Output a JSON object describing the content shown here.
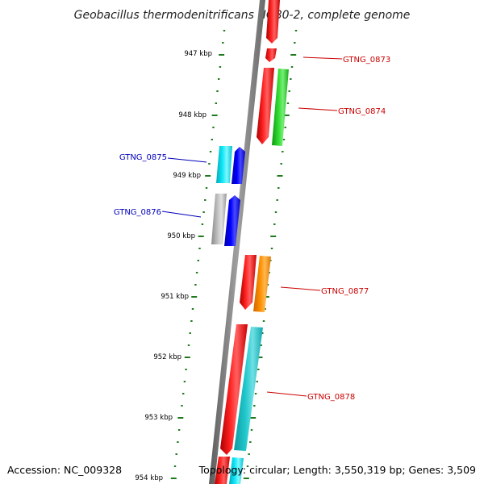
{
  "title": "Geobacillus thermodenitrificans NG80-2, complete genome",
  "accession_text": "Accession: NC_009328",
  "topology_text": "Topology: circular; Length: 3,550,319 bp; Genes: 3,509",
  "kbp_labels": [
    "947 kbp",
    "948 kbp",
    "949 kbp",
    "950 kbp",
    "951 kbp",
    "952 kbp",
    "953 kbp",
    "954 kbp"
  ],
  "gene_labels": [
    {
      "id": "GTNG_0873",
      "color": "#cc0000"
    },
    {
      "id": "GTNG_0874",
      "color": "#cc0000"
    },
    {
      "id": "GTNG_0875",
      "color": "#0000bb"
    },
    {
      "id": "GTNG_0876",
      "color": "#0000bb"
    },
    {
      "id": "GTNG_0877",
      "color": "#cc0000"
    },
    {
      "id": "GTNG_0878",
      "color": "#cc0000"
    }
  ],
  "colors": {
    "backbone": "#7a7a7a",
    "tick": "#1f7a1f",
    "red": "#ee0000",
    "green": "#22cc22",
    "cyan": "#00d8e8",
    "blue": "#0000ee",
    "gray": "#b0b0b0",
    "orange": "#ff8800",
    "teal": "#22c4c8"
  }
}
